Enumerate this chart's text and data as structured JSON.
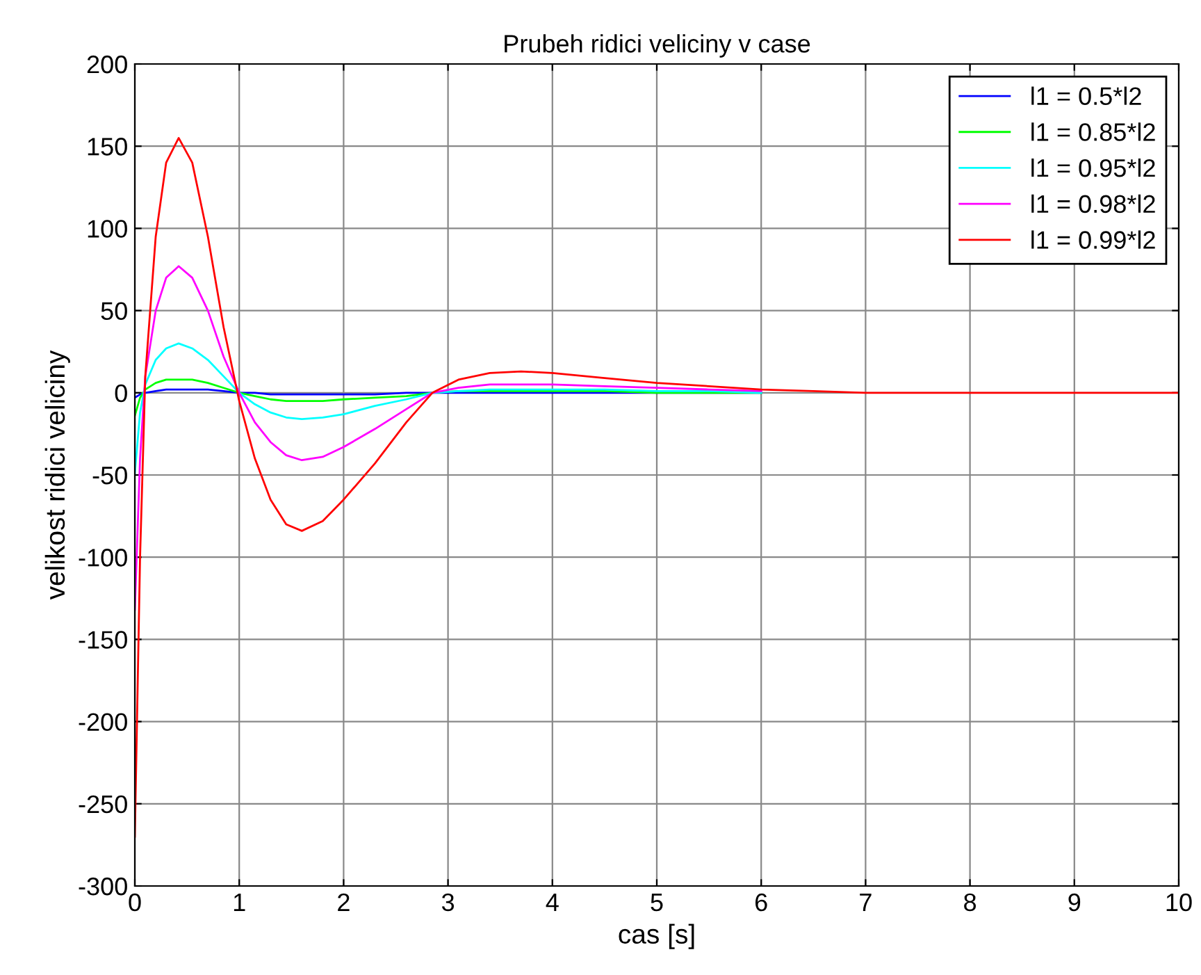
{
  "chart_data": {
    "type": "line",
    "title": "Prubeh ridici veliciny v case",
    "xlabel": "cas [s]",
    "ylabel": "velikost ridici veliciny",
    "x": [
      0,
      0.05,
      0.1,
      0.2,
      0.3,
      0.42,
      0.55,
      0.7,
      0.85,
      1.0,
      1.15,
      1.3,
      1.45,
      1.6,
      1.8,
      2.0,
      2.3,
      2.6,
      2.85,
      3.1,
      3.4,
      3.7,
      4.0,
      4.5,
      5.0,
      5.5,
      6.0,
      6.5,
      7.0,
      8,
      9,
      10
    ],
    "series": [
      {
        "name": "l1 = 0.5*l2",
        "color": "#0000ff",
        "values": [
          -3,
          -1,
          0,
          1,
          2,
          2,
          2,
          2,
          1,
          0,
          0,
          -1,
          -1,
          -1,
          -1,
          -1,
          -1,
          0,
          0,
          0,
          0,
          0,
          0,
          0,
          0,
          0,
          0,
          null,
          null,
          null,
          null,
          null
        ]
      },
      {
        "name": "l1 = 0.85*l2",
        "color": "#00ff00",
        "values": [
          -14,
          -3,
          2,
          6,
          8,
          8,
          8,
          6,
          3,
          0,
          -2,
          -4,
          -5,
          -5,
          -5,
          -4,
          -3,
          -2,
          0,
          1,
          1,
          1,
          1,
          1,
          0,
          0,
          0,
          null,
          null,
          null,
          null,
          null
        ]
      },
      {
        "name": "l1 = 0.95*l2",
        "color": "#00ffff",
        "values": [
          -49,
          -12,
          5,
          20,
          27,
          30,
          27,
          20,
          10,
          0,
          -7,
          -12,
          -15,
          -16,
          -15,
          -13,
          -8,
          -4,
          0,
          1,
          2,
          2,
          2,
          2,
          1,
          1,
          0,
          null,
          null,
          null,
          null,
          null
        ]
      },
      {
        "name": "l1 = 0.98*l2",
        "color": "#ff00ff",
        "values": [
          -132,
          -40,
          10,
          50,
          70,
          77,
          70,
          50,
          22,
          0,
          -18,
          -30,
          -38,
          -41,
          -39,
          -33,
          -22,
          -10,
          0,
          3,
          5,
          5,
          5,
          4,
          3,
          2,
          1,
          null,
          null,
          null,
          null,
          null
        ]
      },
      {
        "name": "l1 = 0.99*l2",
        "color": "#ff0000",
        "values": [
          -270,
          -100,
          10,
          95,
          140,
          155,
          140,
          95,
          40,
          -5,
          -40,
          -65,
          -80,
          -84,
          -78,
          -65,
          -43,
          -18,
          0,
          8,
          12,
          13,
          12,
          9,
          6,
          4,
          2,
          1,
          0,
          0,
          0,
          0
        ]
      }
    ],
    "xlim": [
      0,
      10
    ],
    "ylim": [
      -300,
      200
    ],
    "xticks": [
      0,
      1,
      2,
      3,
      4,
      5,
      6,
      7,
      8,
      9,
      10
    ],
    "yticks": [
      -300,
      -250,
      -200,
      -150,
      -100,
      -50,
      0,
      50,
      100,
      150,
      200
    ],
    "grid": true,
    "legend": "top right",
    "marker": "none",
    "line_style": "solid"
  }
}
